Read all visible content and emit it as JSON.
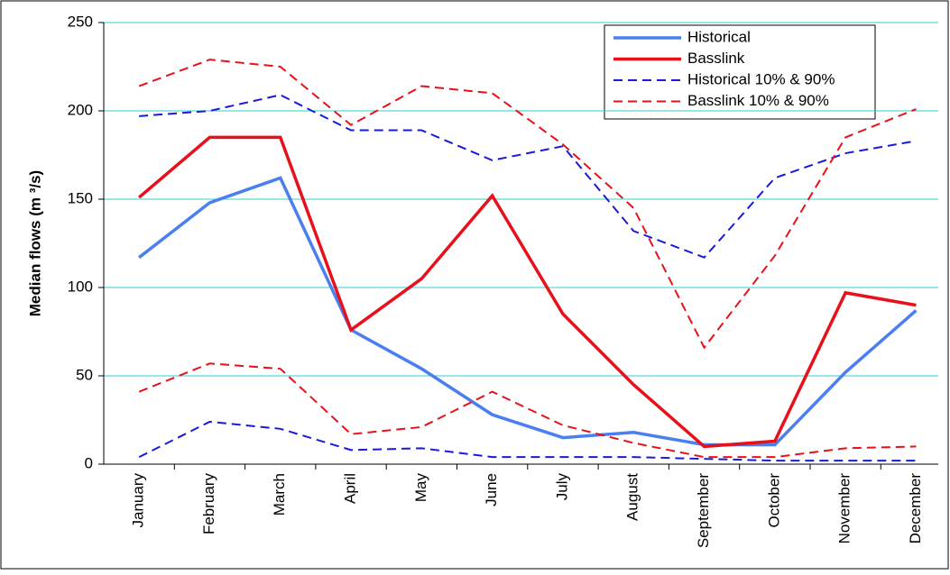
{
  "chart_data": {
    "type": "line",
    "y_label": "Median flows (m ³/s)",
    "categories": [
      "January",
      "February",
      "March",
      "April",
      "May",
      "June",
      "July",
      "August",
      "September",
      "October",
      "November",
      "December"
    ],
    "ylim": [
      0,
      250
    ],
    "yticks": [
      0,
      50,
      100,
      150,
      200,
      250
    ],
    "grid": true,
    "series": [
      {
        "name": "Historical",
        "color": "#4a7ff0",
        "dashed": false,
        "lines": [
          [
            117,
            148,
            162,
            76,
            54,
            28,
            15,
            18,
            11,
            11,
            52,
            87
          ]
        ]
      },
      {
        "name": "Basslink",
        "color": "#e8101a",
        "dashed": false,
        "lines": [
          [
            151,
            185,
            185,
            76,
            105,
            152,
            85,
            45,
            10,
            13,
            97,
            90
          ]
        ]
      },
      {
        "name": "Historical 10% & 90%",
        "color": "#1a1adc",
        "dashed": true,
        "lines": [
          [
            197,
            200,
            209,
            189,
            189,
            172,
            180,
            132,
            117,
            162,
            176,
            183
          ],
          [
            4,
            24,
            20,
            8,
            9,
            4,
            4,
            4,
            3,
            2,
            2,
            2
          ]
        ]
      },
      {
        "name": "Basslink 10% & 90%",
        "color": "#e8101a",
        "dashed": true,
        "lines": [
          [
            214,
            229,
            225,
            192,
            214,
            210,
            181,
            145,
            66,
            118,
            185,
            201
          ],
          [
            41,
            57,
            54,
            17,
            21,
            41,
            22,
            12,
            4,
            4,
            9,
            10
          ]
        ]
      }
    ]
  }
}
